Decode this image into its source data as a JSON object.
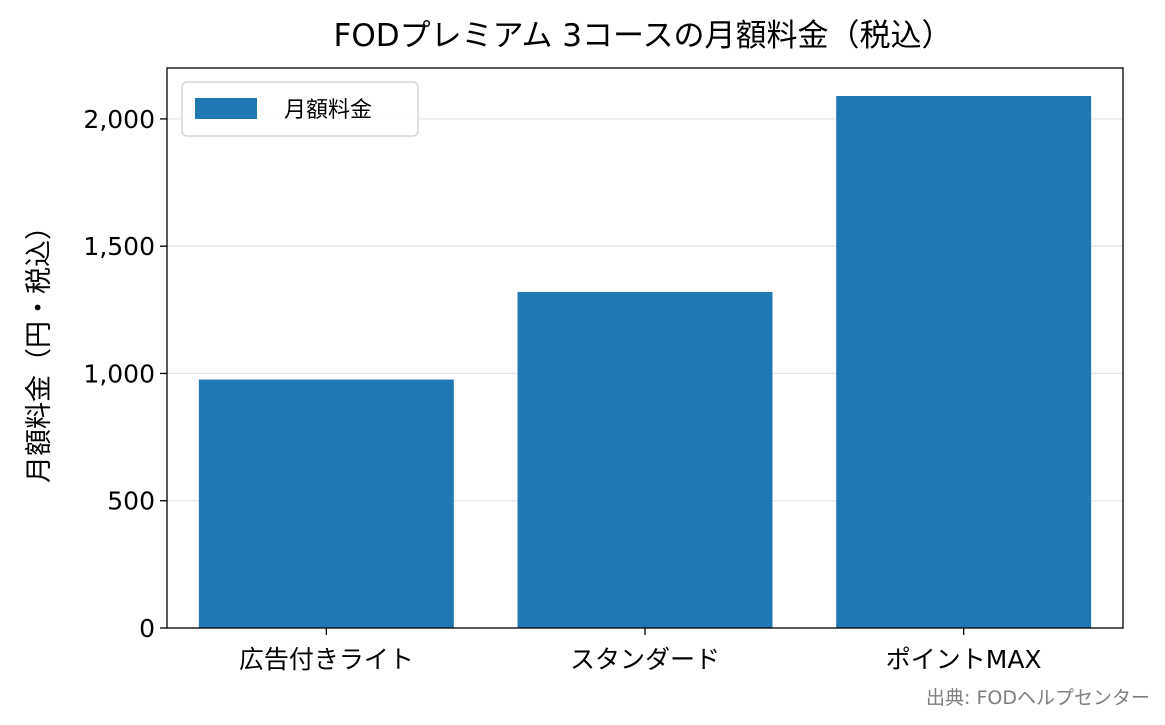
{
  "chart_data": {
    "type": "bar",
    "title": "FODプレミアム 3コースの月額料金（税込）",
    "xlabel": "",
    "ylabel": "月額料金（円・税込）",
    "categories": [
      "広告付きライト",
      "スタンダード",
      "ポイントMAX"
    ],
    "series": [
      {
        "name": "月額料金",
        "values": [
          976,
          1320,
          2090
        ],
        "color": "#1f77b4"
      }
    ],
    "ylim": [
      0,
      2200
    ],
    "yticks": [
      0,
      500,
      1000,
      1500,
      2000
    ],
    "ytick_labels": [
      "0",
      "500",
      "1,000",
      "1,500",
      "2,000"
    ],
    "grid": "y",
    "legend": "upper-left",
    "source": "出典: FODヘルプセンター"
  }
}
